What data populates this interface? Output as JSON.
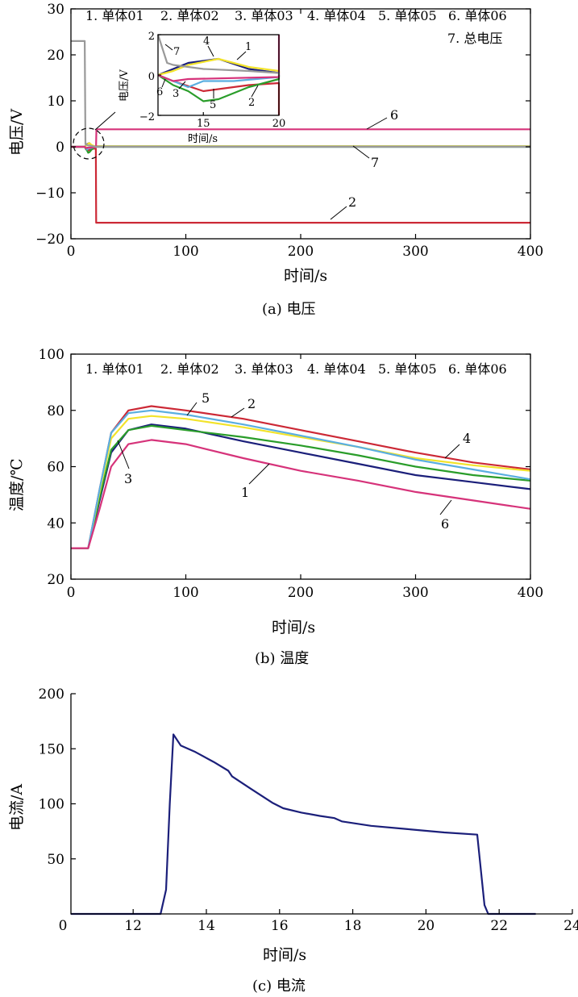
{
  "chart_data": [
    {
      "id": "voltage",
      "type": "line",
      "caption": "(a) 电压",
      "xlabel": "时间/s",
      "ylabel": "电压/V",
      "xlim": [
        0,
        400
      ],
      "ylim": [
        -20,
        30
      ],
      "xticks": [
        0,
        100,
        200,
        300,
        400
      ],
      "yticks": [
        -20,
        -10,
        0,
        10,
        20,
        30
      ],
      "legend": [
        "1. 单体01",
        "2. 单体02",
        "3. 单体03",
        "4. 单体04",
        "5. 单体05",
        "6. 单体06",
        "7. 总电压"
      ],
      "series": [
        {
          "label": "1",
          "color": "#1b1f7a",
          "x": [
            0,
            12,
            13,
            14,
            16,
            18,
            20,
            22,
            400
          ],
          "y": [
            0,
            0,
            0.3,
            0.6,
            0.8,
            0.3,
            0.1,
            0.1,
            0.1
          ]
        },
        {
          "label": "2",
          "color": "#cc2936",
          "x": [
            0,
            12,
            13,
            15,
            18,
            20,
            21.7,
            22,
            400
          ],
          "y": [
            0,
            0,
            -0.3,
            -0.8,
            -0.5,
            -0.4,
            -0.4,
            -16.5,
            -16.5
          ]
        },
        {
          "label": "3",
          "color": "#2a9d2a",
          "x": [
            0,
            12,
            13,
            14,
            15,
            16,
            18,
            20,
            22,
            400
          ],
          "y": [
            0,
            0,
            -0.5,
            -0.8,
            -1.3,
            -1.2,
            -0.6,
            -0.2,
            0,
            0
          ]
        },
        {
          "label": "4",
          "color": "#f2e32b",
          "x": [
            0,
            12,
            13,
            14,
            16,
            18,
            20,
            22,
            400
          ],
          "y": [
            0,
            0,
            0.2,
            0.5,
            0.8,
            0.4,
            0.2,
            0.1,
            0.1
          ]
        },
        {
          "label": "5",
          "color": "#5aaee0",
          "x": [
            0,
            12,
            13,
            14,
            15,
            17,
            20,
            22,
            400
          ],
          "y": [
            0,
            0,
            -0.3,
            -0.6,
            -0.3,
            -0.3,
            -0.1,
            0,
            0
          ]
        },
        {
          "label": "6",
          "color": "#d6337a",
          "x": [
            0,
            12,
            13,
            14,
            20,
            21.8,
            22.2,
            400
          ],
          "y": [
            0,
            0,
            -0.3,
            -0.2,
            -0.1,
            -0.1,
            3.8,
            3.8
          ]
        },
        {
          "label": "7",
          "color": "#999999",
          "x": [
            0,
            12,
            12.6,
            13,
            15,
            18,
            20,
            22,
            400
          ],
          "y": [
            23,
            23,
            0.6,
            0.5,
            0.3,
            0.2,
            0.1,
            0,
            0
          ]
        }
      ],
      "inset": {
        "ylabel": "电压/V",
        "xlabel": "时间/s",
        "xlim": [
          12,
          20
        ],
        "ylim": [
          -2,
          2
        ],
        "xticks": [
          15,
          20
        ],
        "yticks": [
          -2,
          0,
          2
        ],
        "labels": [
          "7",
          "4",
          "1",
          "6",
          "3",
          "5",
          "2"
        ]
      }
    },
    {
      "id": "temperature",
      "type": "line",
      "caption": "(b) 温度",
      "xlabel": "时间/s",
      "ylabel": "温度/℃",
      "xlim": [
        0,
        400
      ],
      "ylim": [
        20,
        100
      ],
      "xticks": [
        0,
        100,
        200,
        300,
        400
      ],
      "yticks": [
        20,
        40,
        60,
        80,
        100
      ],
      "legend": [
        "1. 单体01",
        "2. 单体02",
        "3. 单体03",
        "4. 单体04",
        "5. 单体05",
        "6. 单体06"
      ],
      "series": [
        {
          "label": "1",
          "color": "#1b1f7a",
          "x": [
            0,
            15,
            25,
            35,
            50,
            70,
            100,
            150,
            200,
            250,
            300,
            350,
            400
          ],
          "y": [
            31,
            31,
            48,
            65,
            73,
            75,
            73.5,
            69,
            65,
            61,
            57,
            54.5,
            52
          ]
        },
        {
          "label": "2",
          "color": "#cc2936",
          "x": [
            0,
            15,
            25,
            35,
            50,
            70,
            100,
            150,
            200,
            250,
            300,
            350,
            400
          ],
          "y": [
            31,
            31,
            52,
            72,
            80,
            81.5,
            80,
            77,
            73,
            69,
            65,
            61.5,
            59
          ]
        },
        {
          "label": "3",
          "color": "#2a9d2a",
          "x": [
            0,
            15,
            25,
            35,
            50,
            70,
            100,
            150,
            200,
            250,
            300,
            350,
            400
          ],
          "y": [
            31,
            31,
            49,
            66,
            73,
            74.5,
            73,
            70.5,
            67.5,
            64,
            60,
            57,
            55
          ]
        },
        {
          "label": "4",
          "color": "#f2e32b",
          "x": [
            0,
            15,
            25,
            35,
            50,
            70,
            100,
            150,
            200,
            250,
            300,
            350,
            400
          ],
          "y": [
            31,
            31,
            51,
            70,
            77,
            78,
            77,
            74,
            70.5,
            67,
            63,
            60.5,
            58.5
          ]
        },
        {
          "label": "5",
          "color": "#5aaee0",
          "x": [
            0,
            15,
            25,
            35,
            50,
            70,
            100,
            150,
            200,
            250,
            300,
            350,
            400
          ],
          "y": [
            31,
            31,
            52,
            72,
            79,
            80,
            78.5,
            75,
            71,
            67,
            62.5,
            59,
            55.5
          ]
        },
        {
          "label": "6",
          "color": "#d6337a",
          "x": [
            0,
            15,
            25,
            35,
            50,
            70,
            100,
            150,
            200,
            250,
            300,
            350,
            400
          ],
          "y": [
            31,
            31,
            45,
            60,
            68,
            69.5,
            68,
            63,
            58.5,
            55,
            51,
            48,
            45
          ]
        }
      ]
    },
    {
      "id": "current",
      "type": "line",
      "caption": "(c) 电流",
      "xlabel": "时间/s",
      "ylabel": "电流/A",
      "xlim": [
        10.3,
        24
      ],
      "ylim": [
        0,
        200
      ],
      "xticks": [
        12,
        14,
        16,
        18,
        20,
        22,
        24
      ],
      "yticks": [
        50,
        100,
        150,
        200
      ],
      "origin_label": "0",
      "series": [
        {
          "label": "电流",
          "color": "#1b1f7a",
          "x": [
            10.3,
            12.75,
            12.9,
            13.0,
            13.1,
            13.3,
            13.7,
            14.2,
            14.6,
            14.7,
            15.2,
            15.8,
            16.1,
            16.6,
            17.1,
            17.5,
            17.7,
            18.5,
            19.5,
            20.5,
            21.4,
            21.6,
            21.7,
            23
          ],
          "y": [
            0,
            0,
            22,
            100,
            163,
            153,
            147,
            138,
            130,
            125,
            114,
            101,
            96,
            92,
            89,
            87,
            84,
            80,
            77,
            74,
            72,
            8,
            0,
            0
          ]
        }
      ]
    }
  ]
}
